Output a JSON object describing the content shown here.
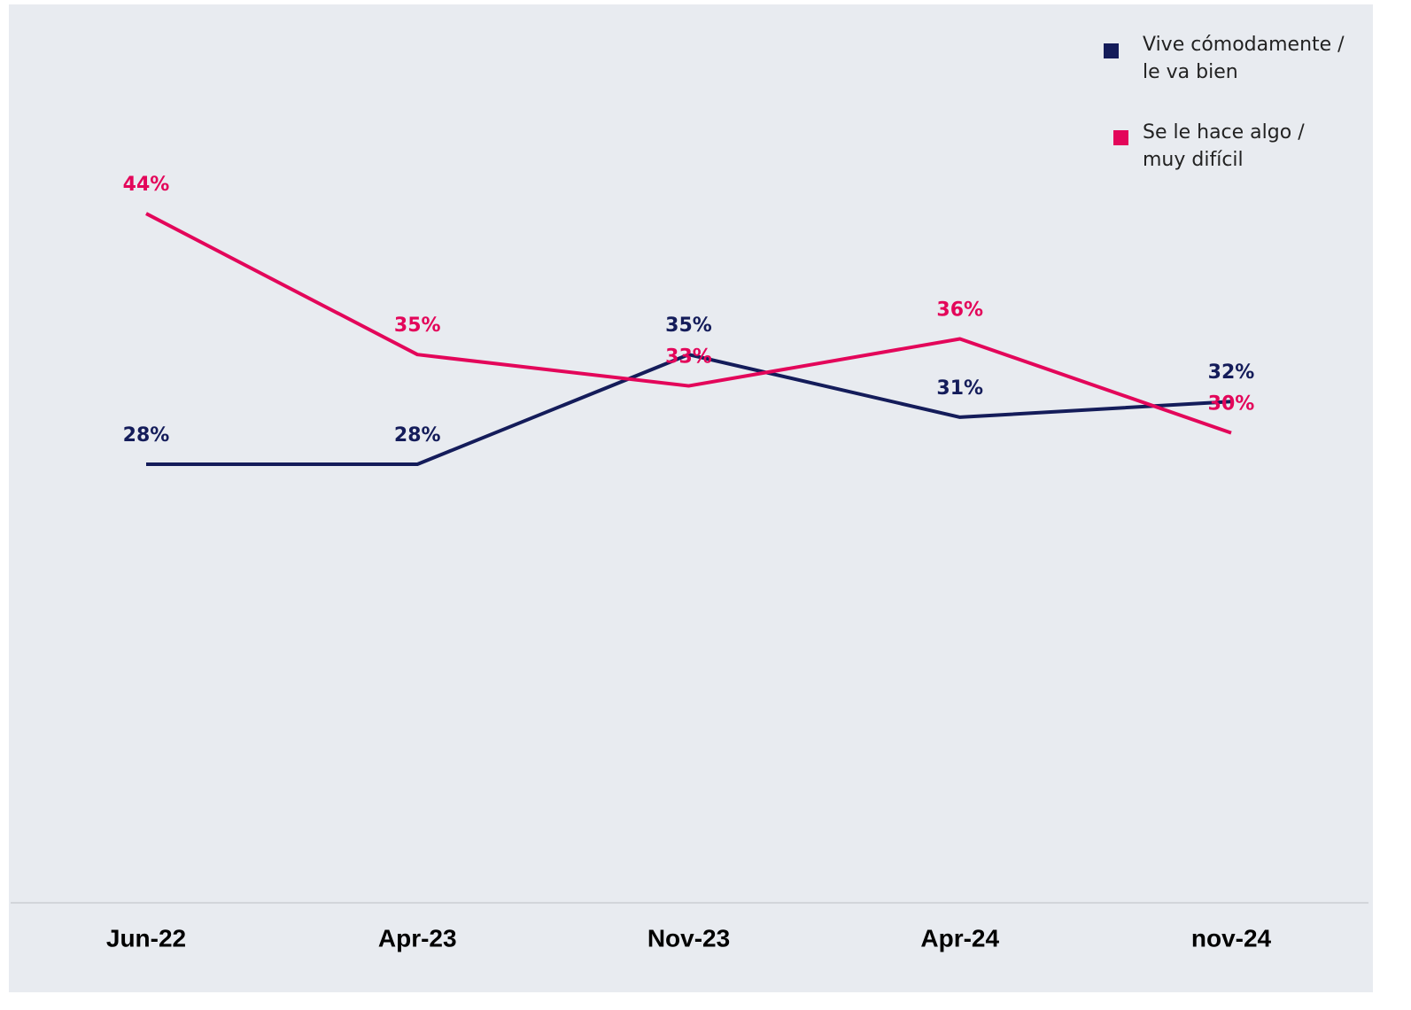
{
  "chart_data": {
    "type": "line",
    "categories": [
      "Jun-22",
      "Apr-23",
      "Nov-23",
      "Apr-24",
      "nov-24"
    ],
    "series": [
      {
        "name": "Vive cómodamente / le va bien",
        "color": "#141c5a",
        "values": [
          28,
          28,
          35,
          31,
          32
        ],
        "value_labels": [
          "28%",
          "28%",
          "35%",
          "31%",
          "32%"
        ]
      },
      {
        "name": "Se le hace algo / muy difícil",
        "color": "#e3065a",
        "values": [
          44,
          35,
          33,
          36,
          30
        ],
        "value_labels": [
          "44%",
          "35%",
          "33%",
          "36%",
          "30%"
        ]
      }
    ],
    "ylim": [
      0,
      50
    ],
    "legend": "upper right"
  }
}
